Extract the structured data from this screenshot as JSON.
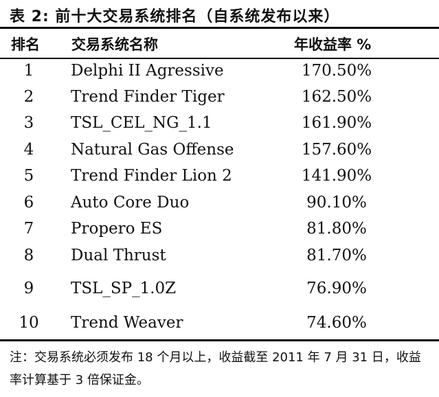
{
  "title": "表 2:  前十大交易系统排名（自系统发布以来）",
  "headers": {
    "rank": "排名",
    "name": "交易系统名称",
    "return": "年收益率  %"
  },
  "rows": [
    {
      "rank": "1",
      "name": "Delphi II Agressive",
      "return": "170.50%"
    },
    {
      "rank": "2",
      "name": "Trend Finder Tiger",
      "return": "162.50%"
    },
    {
      "rank": "3",
      "name": "TSL_CEL_NG_1.1",
      "return": "161.90%"
    },
    {
      "rank": "4",
      "name": "Natural Gas Offense",
      "return": "157.60%"
    },
    {
      "rank": "5",
      "name": "Trend Finder Lion 2",
      "return": "141.90%"
    },
    {
      "rank": "6",
      "name": "Auto Core Duo",
      "return": "90.10%"
    },
    {
      "rank": "7",
      "name": "Propero ES",
      "return": "81.80%"
    },
    {
      "rank": "8",
      "name": "Dual Thrust",
      "return": "81.70%"
    },
    {
      "rank": "9",
      "name": "TSL_SP_1.0Z",
      "return": "76.90%"
    },
    {
      "rank": "10",
      "name": "Trend Weaver",
      "return": "74.60%"
    }
  ],
  "note": "注：交易系统必须发布 18 个月以上，收益截至 2011 年 7 月 31 日，收益率计算基于 3 倍保证金。"
}
